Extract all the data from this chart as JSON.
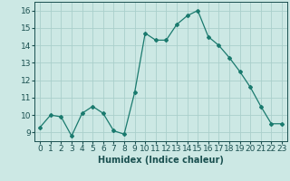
{
  "x": [
    0,
    1,
    2,
    3,
    4,
    5,
    6,
    7,
    8,
    9,
    10,
    11,
    12,
    13,
    14,
    15,
    16,
    17,
    18,
    19,
    20,
    21,
    22,
    23
  ],
  "y": [
    9.3,
    10.0,
    9.9,
    8.8,
    10.1,
    10.5,
    10.1,
    9.1,
    8.9,
    11.3,
    14.7,
    14.3,
    14.3,
    15.2,
    15.7,
    16.0,
    14.5,
    14.0,
    13.3,
    12.5,
    11.6,
    10.5,
    9.5,
    9.5
  ],
  "line_color": "#1a7a6e",
  "marker": "D",
  "marker_size": 2,
  "xlabel": "Humidex (Indice chaleur)",
  "xlim": [
    -0.5,
    23.5
  ],
  "ylim": [
    8.5,
    16.5
  ],
  "yticks": [
    9,
    10,
    11,
    12,
    13,
    14,
    15,
    16
  ],
  "xticks": [
    0,
    1,
    2,
    3,
    4,
    5,
    6,
    7,
    8,
    9,
    10,
    11,
    12,
    13,
    14,
    15,
    16,
    17,
    18,
    19,
    20,
    21,
    22,
    23
  ],
  "bg_color": "#cce8e4",
  "grid_color": "#aacfcb",
  "tick_color": "#1a5050",
  "label_color": "#1a5050",
  "xlabel_fontsize": 7,
  "tick_fontsize": 6.5
}
